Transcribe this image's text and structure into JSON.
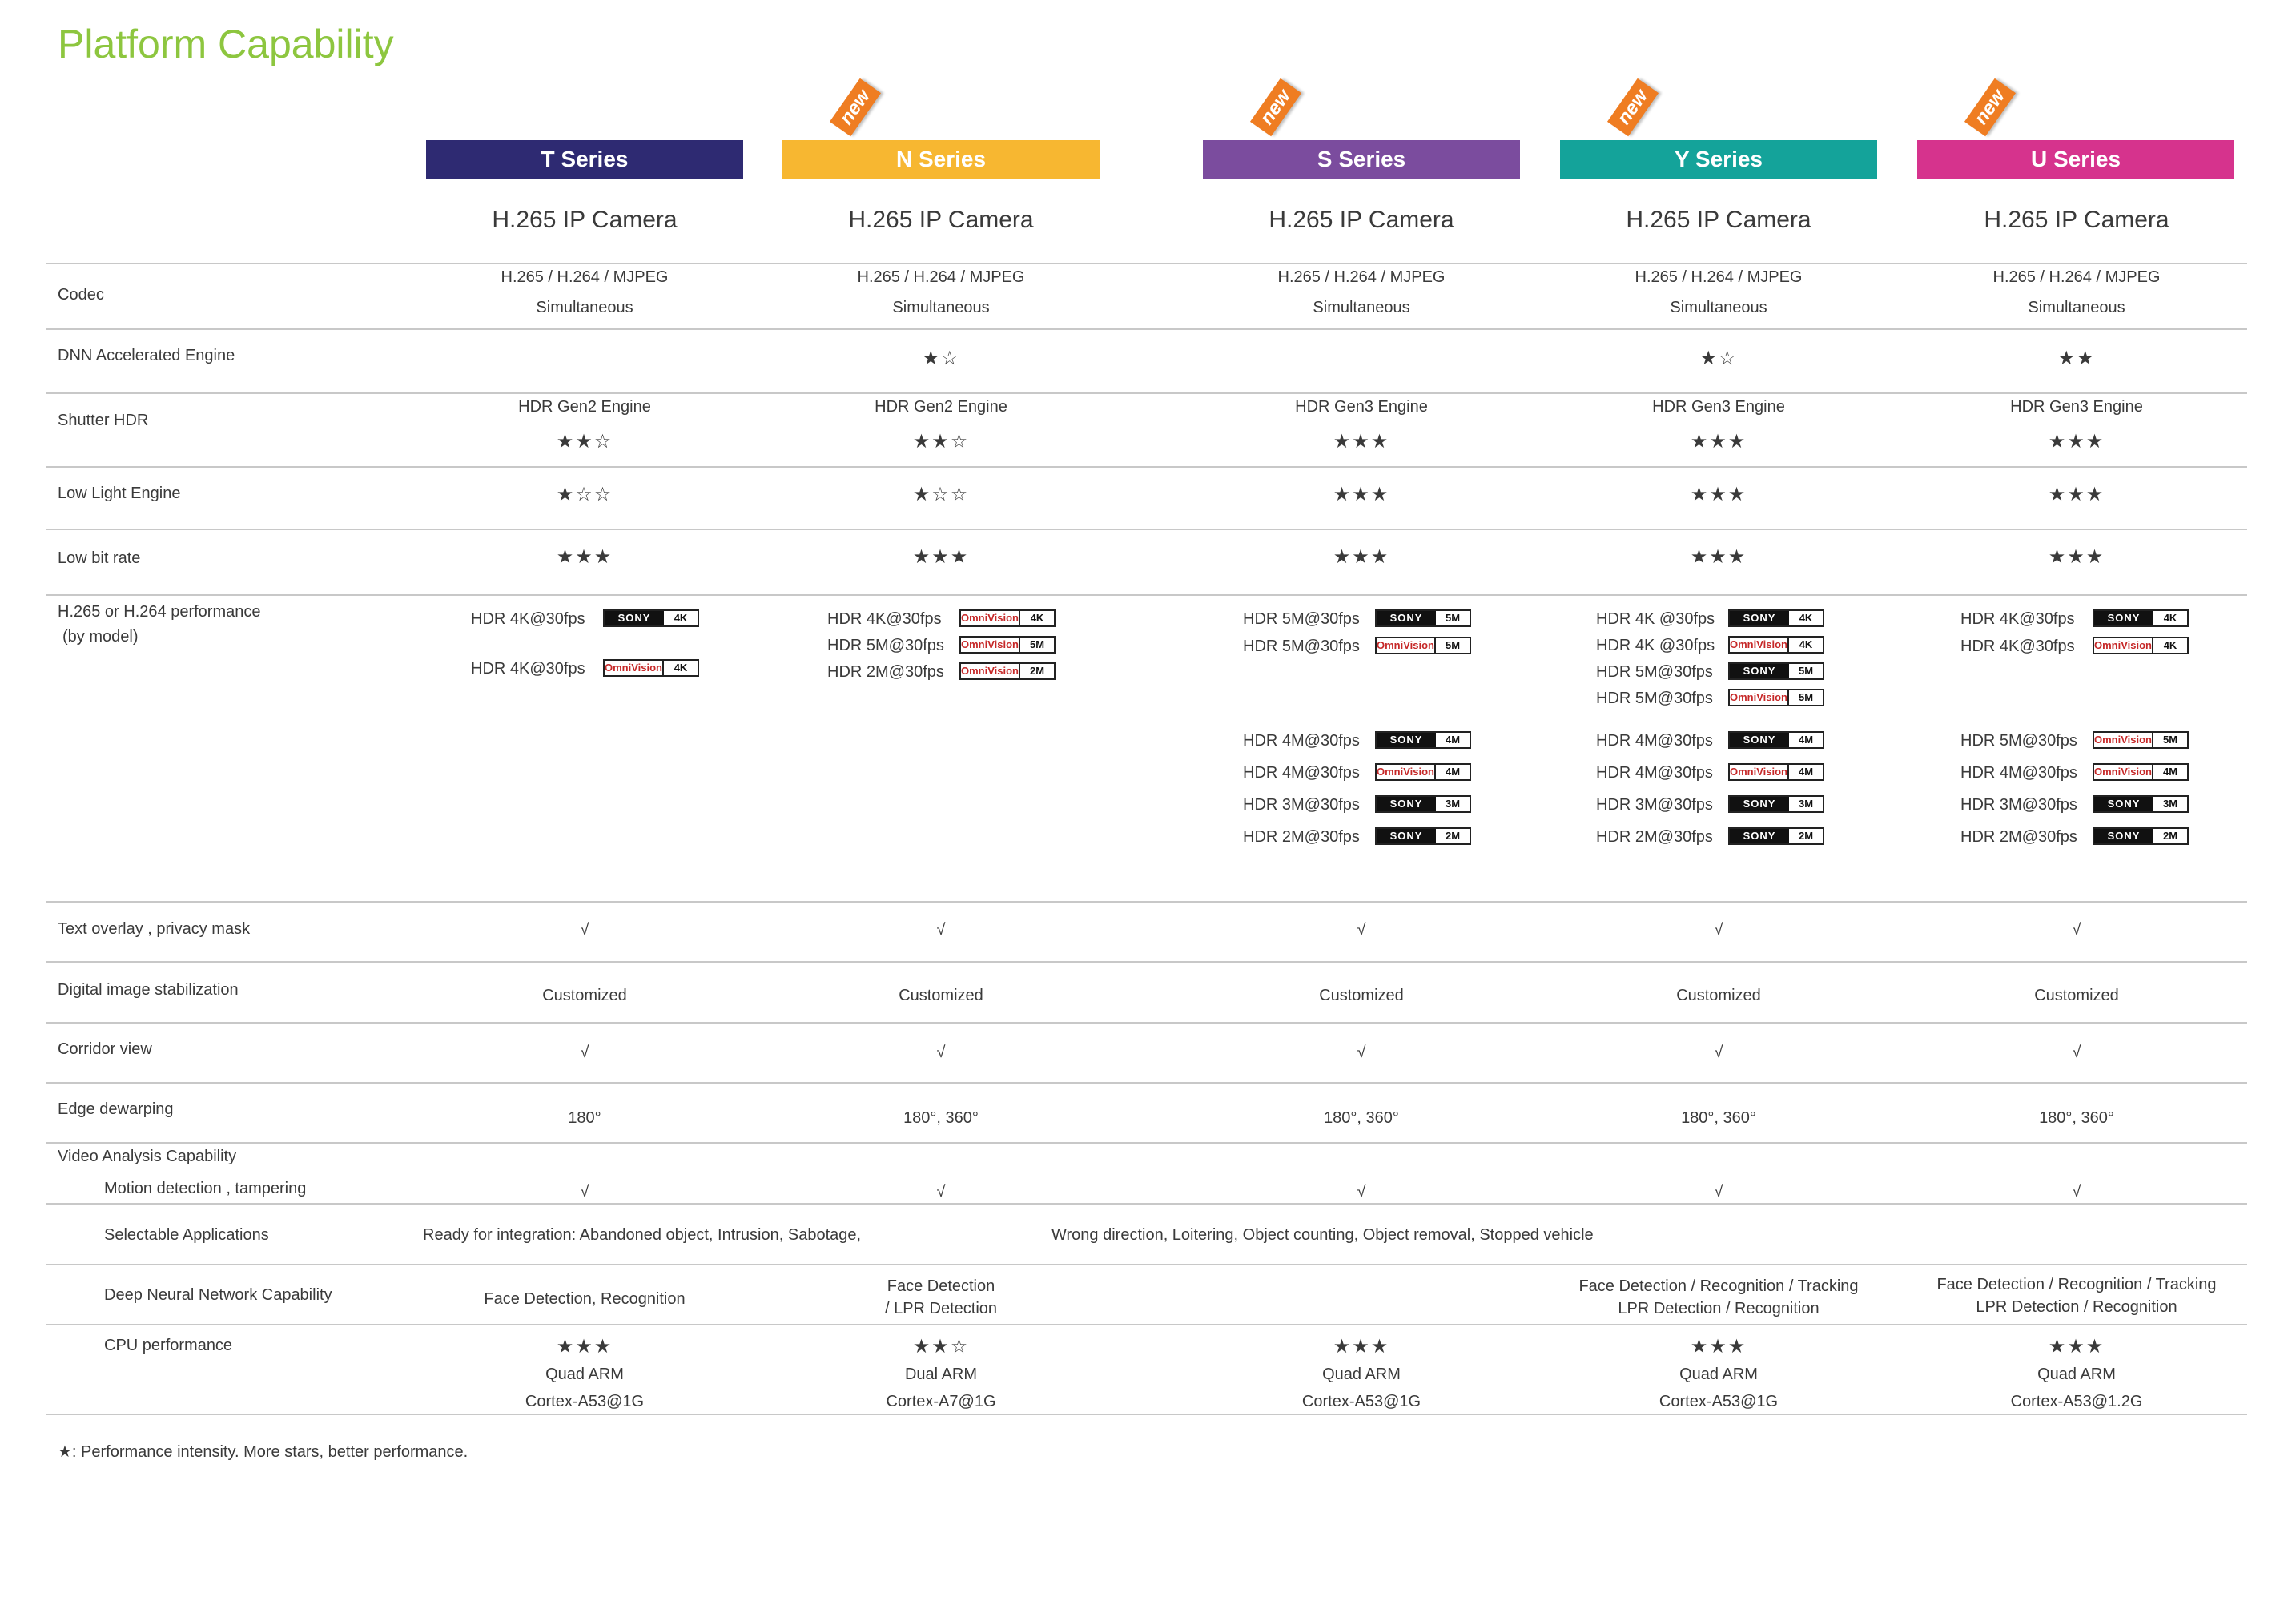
{
  "title": "Platform Capability",
  "series": [
    {
      "name": "T Series",
      "color": "#2e2a72",
      "new": false,
      "camera": "H.265 IP Camera"
    },
    {
      "name": "N Series",
      "color": "#f7b731",
      "new": true,
      "camera": "H.265 IP Camera"
    },
    {
      "name": "S Series",
      "color": "#7b4c9e",
      "new": true,
      "camera": "H.265 IP Camera"
    },
    {
      "name": "Y Series",
      "color": "#14a39a",
      "new": true,
      "camera": "H.265 IP Camera"
    },
    {
      "name": "U Series",
      "color": "#d6338d",
      "new": true,
      "camera": "H.265 IP Camera"
    }
  ],
  "new_label": "new",
  "rows": {
    "codec": {
      "label": "Codec",
      "values": [
        [
          "H.265 / H.264 / MJPEG",
          "Simultaneous"
        ],
        [
          "H.265 / H.264 / MJPEG",
          "Simultaneous"
        ],
        [
          "H.265 / H.264 / MJPEG",
          "Simultaneous"
        ],
        [
          "H.265 / H.264 / MJPEG",
          "Simultaneous"
        ],
        [
          "H.265 / H.264 / MJPEG",
          "Simultaneous"
        ]
      ]
    },
    "dnn": {
      "label": "DNN Accelerated Engine",
      "values": [
        "",
        "★☆",
        "",
        "★☆",
        "★★"
      ]
    },
    "shutter": {
      "label": "Shutter HDR",
      "values": [
        [
          "HDR Gen2 Engine",
          "★★☆"
        ],
        [
          "HDR Gen2 Engine",
          "★★☆"
        ],
        [
          "HDR Gen3 Engine",
          "★★★"
        ],
        [
          "HDR Gen3 Engine",
          "★★★"
        ],
        [
          "HDR Gen3 Engine",
          "★★★"
        ]
      ]
    },
    "lowlight": {
      "label": "Low Light Engine",
      "values": [
        "★☆☆",
        "★☆☆",
        "★★★",
        "★★★",
        "★★★"
      ]
    },
    "lowbit": {
      "label": "Low bit rate",
      "values": [
        "★★★",
        "★★★",
        "★★★",
        "★★★",
        "★★★"
      ]
    },
    "perf": {
      "label_line1": "H.265 or H.264 performance",
      "label_line2": "(by model)",
      "sensor_brands": {
        "sony": "SONY",
        "omni": "OmniVision"
      },
      "groups": [
        [
          [
            {
              "text": "HDR 4K@30fps",
              "brand": "sony",
              "res": "4K"
            }
          ],
          [
            {
              "text": "HDR 4K@30fps",
              "brand": "omni",
              "res": "4K"
            }
          ]
        ],
        [
          [
            {
              "text": "HDR 4K@30fps",
              "brand": "omni",
              "res": "4K"
            },
            {
              "text": "HDR 5M@30fps",
              "brand": "omni",
              "res": "5M"
            },
            {
              "text": "HDR 2M@30fps",
              "brand": "omni",
              "res": "2M"
            }
          ]
        ],
        [
          [
            {
              "text": "HDR 5M@30fps",
              "brand": "sony",
              "res": "5M"
            },
            {
              "text": "HDR 5M@30fps",
              "brand": "omni",
              "res": "5M"
            }
          ],
          [
            {
              "text": "HDR 4M@30fps",
              "brand": "sony",
              "res": "4M"
            },
            {
              "text": "HDR 4M@30fps",
              "brand": "omni",
              "res": "4M"
            },
            {
              "text": "HDR 3M@30fps",
              "brand": "sony",
              "res": "3M"
            },
            {
              "text": "HDR 2M@30fps",
              "brand": "sony",
              "res": "2M"
            }
          ]
        ],
        [
          [
            {
              "text": "HDR 4K @30fps",
              "brand": "sony",
              "res": "4K"
            },
            {
              "text": "HDR 4K @30fps",
              "brand": "omni",
              "res": "4K"
            },
            {
              "text": "HDR 5M@30fps",
              "brand": "sony",
              "res": "5M"
            },
            {
              "text": "HDR 5M@30fps",
              "brand": "omni",
              "res": "5M"
            }
          ],
          [
            {
              "text": "HDR 4M@30fps",
              "brand": "sony",
              "res": "4M"
            },
            {
              "text": "HDR 4M@30fps",
              "brand": "omni",
              "res": "4M"
            },
            {
              "text": "HDR 3M@30fps",
              "brand": "sony",
              "res": "3M"
            },
            {
              "text": "HDR 2M@30fps",
              "brand": "sony",
              "res": "2M"
            }
          ]
        ],
        [
          [
            {
              "text": "HDR 4K@30fps",
              "brand": "sony",
              "res": "4K"
            },
            {
              "text": "HDR 4K@30fps",
              "brand": "omni",
              "res": "4K"
            }
          ],
          [
            {
              "text": "HDR 5M@30fps",
              "brand": "omni",
              "res": "5M"
            },
            {
              "text": "HDR 4M@30fps",
              "brand": "omni",
              "res": "4M"
            },
            {
              "text": "HDR 3M@30fps",
              "brand": "sony",
              "res": "3M"
            },
            {
              "text": "HDR 2M@30fps",
              "brand": "sony",
              "res": "2M"
            }
          ]
        ]
      ]
    },
    "overlay": {
      "label": "Text overlay , privacy mask",
      "values": [
        "√",
        "√",
        "√",
        "√",
        "√"
      ]
    },
    "stab": {
      "label": "Digital image stabilization",
      "values": [
        "Customized",
        "Customized",
        "Customized",
        "Customized",
        "Customized"
      ]
    },
    "corridor": {
      "label": "Corridor view",
      "values": [
        "√",
        "√",
        "√",
        "√",
        "√"
      ]
    },
    "dewarp": {
      "label": "Edge dewarping",
      "values": [
        "180°",
        "180°, 360°",
        "180°, 360°",
        "180°, 360°",
        "180°, 360°"
      ]
    },
    "video": {
      "label": "Video Analysis Capability"
    },
    "motion": {
      "label": "Motion detection , tampering",
      "values": [
        "√",
        "√",
        "√",
        "√",
        "√"
      ]
    },
    "apps": {
      "label": "Selectable Applications",
      "text1": "Ready for integration:  Abandoned object, Intrusion, Sabotage,",
      "text2": "Wrong direction, Loitering, Object counting, Object removal, Stopped vehicle"
    },
    "deep": {
      "label": "Deep Neural Network Capability",
      "values": [
        [
          "Face Detection, Recognition"
        ],
        [
          "Face Detection",
          "/ LPR Detection"
        ],
        [
          ""
        ],
        [
          "Face Detection / Recognition / Tracking",
          "LPR Detection / Recognition"
        ],
        [
          "Face Detection / Recognition / Tracking",
          "LPR Detection / Recognition"
        ]
      ]
    },
    "cpu": {
      "label": "CPU performance",
      "values": [
        [
          "★★★",
          "Quad ARM",
          "Cortex-A53@1G"
        ],
        [
          "★★☆",
          "Dual ARM",
          "Cortex-A7@1G"
        ],
        [
          "★★★",
          "Quad ARM",
          "Cortex-A53@1G"
        ],
        [
          "★★★",
          "Quad ARM",
          "Cortex-A53@1G"
        ],
        [
          "★★★",
          "Quad ARM",
          "Cortex-A53@1.2G"
        ]
      ]
    }
  },
  "footnote": "★: Performance intensity. More stars, better performance."
}
